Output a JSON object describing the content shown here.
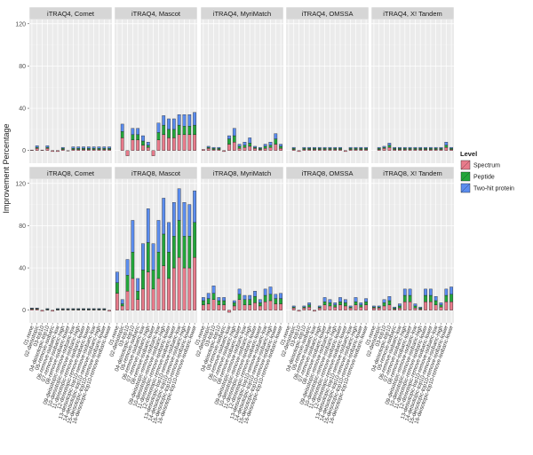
{
  "chart_data": {
    "type": "bar",
    "stacked": true,
    "ylabel": "Improvement Percentage",
    "xlabel": "",
    "ylim": [
      -12,
      124
    ],
    "yticks": [
      0,
      40,
      80,
      120
    ],
    "grid": true,
    "legend": {
      "title": "Level",
      "position": "right",
      "entries": [
        "Spectrum",
        "Peptide",
        "Two-hit protein"
      ]
    },
    "colors": {
      "Spectrum": "#e87b8b",
      "Peptide": "#22a63a",
      "Two-hit protein": "#5b8def",
      "panel_background": "#ebebeb",
      "strip_background": "#d6d6d6"
    },
    "categories": [
      "01-none",
      "02-deisotopic",
      "03-top10",
      "04-deisotopic-top10",
      "05-remove-isobaric",
      "06-remove-isobaric-low",
      "07-remove-isobaric-high",
      "08-remove-isobaric-lower",
      "09-deisotopic-remove-isobaric-low",
      "10-deisotopic-remove-isobaric-high",
      "11-deisotopic-remove-isobaric-lower",
      "12-deisotopic-remove-isobaric-lower",
      "13-deisotopic-top10-remove-isobaric-low",
      "14-deisotopic-top10-remove-isobaric-high",
      "15-deisotopic-top10-remove-isobaric-lower",
      "16-deisotopic-top10-remove-isobaric-lower"
    ],
    "panels": [
      {
        "title": "iTRAQ4, Comet",
        "row": 0,
        "col": 0,
        "series": [
          {
            "name": "Spectrum",
            "values": [
              0.5,
              2,
              0.5,
              2,
              -1,
              -1,
              1,
              -0.5,
              1,
              1,
              1,
              1,
              1,
              1,
              1,
              1
            ]
          },
          {
            "name": "Peptide",
            "values": [
              0,
              1,
              0,
              1,
              0,
              0,
              1,
              0,
              1,
              1,
              1,
              1,
              1,
              1,
              1,
              1
            ]
          },
          {
            "name": "Two-hit protein",
            "values": [
              0,
              1.5,
              0,
              1.5,
              0,
              0,
              1,
              0,
              1.5,
              1.5,
              1.5,
              1.5,
              1.5,
              1.5,
              1.5,
              1.5
            ]
          }
        ]
      },
      {
        "title": "iTRAQ4, Mascot",
        "row": 0,
        "col": 1,
        "series": [
          {
            "name": "Spectrum",
            "values": [
              0,
              12,
              -5,
              10,
              10,
              5,
              3,
              -5,
              10,
              15,
              12,
              12,
              15,
              15,
              15,
              15
            ]
          },
          {
            "name": "Peptide",
            "values": [
              0,
              6,
              0,
              5,
              5,
              4,
              2,
              0,
              7,
              9,
              8,
              8,
              9,
              8,
              8,
              9
            ]
          },
          {
            "name": "Two-hit protein",
            "values": [
              0,
              7,
              0,
              6,
              6,
              5,
              3,
              0,
              9,
              9,
              10,
              10,
              10,
              11,
              11,
              12
            ]
          }
        ]
      },
      {
        "title": "iTRAQ4, MyriMatch",
        "row": 0,
        "col": 2,
        "series": [
          {
            "name": "Spectrum",
            "values": [
              1,
              2,
              1,
              1,
              -1,
              6,
              8,
              2,
              3,
              4,
              2,
              1,
              2,
              3,
              6,
              2
            ]
          },
          {
            "name": "Peptide",
            "values": [
              0,
              1,
              1,
              1,
              0,
              5,
              6,
              2,
              2,
              3,
              1,
              1,
              2,
              2,
              5,
              2
            ]
          },
          {
            "name": "Two-hit protein",
            "values": [
              0,
              1,
              1,
              1,
              0,
              3,
              7,
              2,
              3,
              5,
              1,
              1,
              2,
              3,
              5,
              2
            ]
          }
        ]
      },
      {
        "title": "iTRAQ4, OMSSA",
        "row": 0,
        "col": 3,
        "series": [
          {
            "name": "Spectrum",
            "values": [
              0,
              1,
              -1,
              1,
              1,
              1,
              1,
              1,
              1,
              1,
              1,
              -1,
              1,
              1,
              1,
              1
            ]
          },
          {
            "name": "Peptide",
            "values": [
              0,
              1,
              0,
              1,
              1,
              1,
              1,
              1,
              1,
              1,
              1,
              0,
              1,
              1,
              1,
              1
            ]
          },
          {
            "name": "Two-hit protein",
            "values": [
              0,
              1,
              0,
              1,
              1,
              1,
              1,
              1,
              1,
              1,
              1,
              0,
              1,
              1,
              1,
              1
            ]
          }
        ]
      },
      {
        "title": "iTRAQ4, X! Tandem",
        "row": 0,
        "col": 4,
        "series": [
          {
            "name": "Spectrum",
            "values": [
              0,
              1,
              2,
              3,
              1,
              1,
              1,
              1,
              1,
              1,
              1,
              1,
              1,
              1,
              3,
              1
            ]
          },
          {
            "name": "Peptide",
            "values": [
              0,
              1,
              1,
              2,
              1,
              1,
              1,
              1,
              1,
              1,
              1,
              1,
              1,
              1,
              2,
              1
            ]
          },
          {
            "name": "Two-hit protein",
            "values": [
              0,
              1,
              1,
              2,
              1,
              1,
              1,
              1,
              1,
              1,
              1,
              1,
              1,
              1,
              3,
              1
            ]
          }
        ]
      },
      {
        "title": "iTRAQ8, Comet",
        "row": 1,
        "col": 0,
        "series": [
          {
            "name": "Spectrum",
            "values": [
              1,
              1,
              -1,
              0.5,
              -1,
              0.5,
              0.5,
              0.5,
              0.5,
              0.5,
              0.5,
              0.5,
              0.5,
              0.5,
              0.5,
              -1
            ]
          },
          {
            "name": "Peptide",
            "values": [
              0.5,
              0.5,
              0,
              0.5,
              0,
              0.5,
              0.5,
              0.5,
              0.5,
              0.5,
              0.5,
              0.5,
              0.5,
              0.5,
              0.5,
              0
            ]
          },
          {
            "name": "Two-hit protein",
            "values": [
              0.5,
              0.5,
              0,
              0.5,
              0,
              0.5,
              0.5,
              0.5,
              0.5,
              0.5,
              0.5,
              0.5,
              0.5,
              0.5,
              0.5,
              0
            ]
          }
        ]
      },
      {
        "title": "iTRAQ8, Mascot",
        "row": 1,
        "col": 1,
        "series": [
          {
            "name": "Spectrum",
            "values": [
              16,
              4,
              18,
              30,
              10,
              20,
              36,
              20,
              30,
              42,
              30,
              40,
              50,
              40,
              40,
              50
            ]
          },
          {
            "name": "Peptide",
            "values": [
              10,
              2,
              15,
              25,
              8,
              18,
              28,
              18,
              25,
              30,
              25,
              30,
              35,
              30,
              30,
              33
            ]
          },
          {
            "name": "Two-hit protein",
            "values": [
              10,
              4,
              15,
              30,
              12,
              25,
              32,
              25,
              30,
              34,
              28,
              32,
              30,
              32,
              30,
              30
            ]
          }
        ]
      },
      {
        "title": "iTRAQ8, MyriMatch",
        "row": 1,
        "col": 2,
        "series": [
          {
            "name": "Spectrum",
            "values": [
              5,
              6,
              10,
              5,
              5,
              -2,
              4,
              10,
              5,
              5,
              7,
              4,
              8,
              9,
              6,
              6
            ]
          },
          {
            "name": "Peptide",
            "values": [
              4,
              5,
              6,
              4,
              4,
              0,
              3,
              5,
              5,
              5,
              6,
              3,
              6,
              6,
              5,
              5
            ]
          },
          {
            "name": "Two-hit protein",
            "values": [
              3,
              5,
              7,
              3,
              3,
              0,
              2,
              5,
              4,
              4,
              5,
              3,
              6,
              7,
              4,
              5
            ]
          }
        ]
      },
      {
        "title": "iTRAQ8, OMSSA",
        "row": 1,
        "col": 3,
        "series": [
          {
            "name": "Spectrum",
            "values": [
              0,
              2,
              -1,
              2,
              3,
              -1,
              2,
              5,
              4,
              3,
              5,
              4,
              2,
              5,
              3,
              5
            ]
          },
          {
            "name": "Peptide",
            "values": [
              0,
              1,
              0,
              1,
              2,
              0,
              1,
              3,
              3,
              2,
              3,
              3,
              1,
              3,
              2,
              3
            ]
          },
          {
            "name": "Two-hit protein",
            "values": [
              0,
              1,
              0,
              1,
              2,
              0,
              1,
              4,
              3,
              2,
              4,
              3,
              1,
              4,
              2,
              3
            ]
          }
        ]
      },
      {
        "title": "iTRAQ8, X! Tandem",
        "row": 1,
        "col": 4,
        "series": [
          {
            "name": "Spectrum",
            "values": [
              2,
              2,
              4,
              5,
              1,
              2,
              8,
              8,
              2,
              1,
              8,
              8,
              5,
              3,
              8,
              8
            ]
          },
          {
            "name": "Peptide",
            "values": [
              1,
              1,
              3,
              4,
              1,
              2,
              6,
              6,
              2,
              1,
              6,
              6,
              4,
              2,
              6,
              7
            ]
          },
          {
            "name": "Two-hit protein",
            "values": [
              1,
              1,
              3,
              4,
              1,
              2,
              6,
              6,
              2,
              1,
              6,
              6,
              4,
              2,
              6,
              7
            ]
          }
        ]
      }
    ]
  }
}
